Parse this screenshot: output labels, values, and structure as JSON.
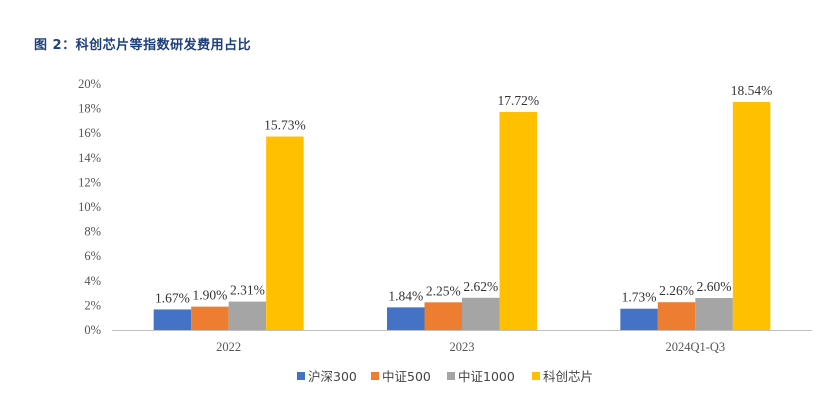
{
  "figure_title": "图 2：科创芯片等指数研发费用占比",
  "colors": {
    "沪深300": "#4472c4",
    "中证500": "#ed7d31",
    "中证1000": "#a5a5a5",
    "科创芯片": "#ffc000",
    "axis": "#bfbfbf",
    "title": "#1f3f7a"
  },
  "chart_data": {
    "type": "bar",
    "title": "",
    "xlabel": "",
    "ylabel": "",
    "categories": [
      "2022",
      "2023",
      "2024Q1-Q3"
    ],
    "ylim": [
      0,
      20
    ],
    "yticks": [
      0,
      2,
      4,
      6,
      8,
      10,
      12,
      14,
      16,
      18,
      20
    ],
    "ytick_labels": [
      "0%",
      "2%",
      "4%",
      "6%",
      "8%",
      "10%",
      "12%",
      "14%",
      "16%",
      "18%",
      "20%"
    ],
    "grid": false,
    "legend_position": "bottom",
    "series": [
      {
        "name": "沪深300",
        "values": [
          1.67,
          1.84,
          1.73
        ],
        "labels": [
          "1.67%",
          "1.84%",
          "1.73%"
        ]
      },
      {
        "name": "中证500",
        "values": [
          1.9,
          2.25,
          2.26
        ],
        "labels": [
          "1.90%",
          "2.25%",
          "2.26%"
        ]
      },
      {
        "name": "中证1000",
        "values": [
          2.31,
          2.62,
          2.6
        ],
        "labels": [
          "2.31%",
          "2.62%",
          "2.60%"
        ]
      },
      {
        "name": "科创芯片",
        "values": [
          15.73,
          17.72,
          18.54
        ],
        "labels": [
          "15.73%",
          "17.72%",
          "18.54%"
        ]
      }
    ]
  }
}
